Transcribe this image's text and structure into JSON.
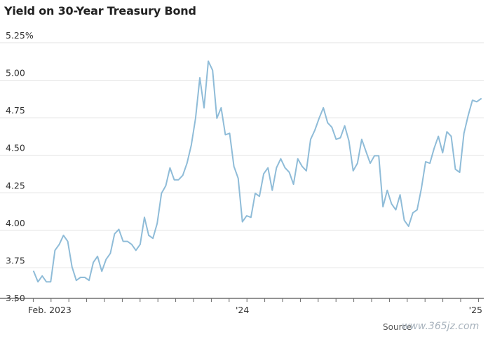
{
  "chart_data": {
    "type": "line",
    "title": "Yield on 30-Year Treasury Bond",
    "xlabel": "",
    "ylabel": "",
    "ylim": [
      3.5,
      5.25
    ],
    "yticks": [
      "5.25%",
      "5.00",
      "4.75",
      "4.50",
      "4.25",
      "4.00",
      "3.75",
      "3.50"
    ],
    "ytick_values": [
      5.25,
      5.0,
      4.75,
      4.5,
      4.25,
      4.0,
      3.75,
      3.5
    ],
    "xtick_labels": [
      {
        "label": "Feb. 2023",
        "index": 0
      },
      {
        "label": "'24",
        "index": 48
      },
      {
        "label": "'25",
        "index": 101
      }
    ],
    "grid": true,
    "line_color": "#8fbcd8",
    "series": [
      {
        "name": "",
        "values": [
          3.68,
          3.61,
          3.65,
          3.61,
          3.61,
          3.82,
          3.86,
          3.92,
          3.88,
          3.71,
          3.62,
          3.64,
          3.64,
          3.62,
          3.74,
          3.78,
          3.68,
          3.76,
          3.8,
          3.93,
          3.96,
          3.88,
          3.88,
          3.86,
          3.82,
          3.86,
          4.04,
          3.92,
          3.9,
          4.0,
          4.2,
          4.25,
          4.37,
          4.29,
          4.29,
          4.32,
          4.4,
          4.52,
          4.7,
          4.97,
          4.77,
          5.08,
          5.02,
          4.7,
          4.77,
          4.59,
          4.6,
          4.38,
          4.3,
          4.01,
          4.05,
          4.04,
          4.2,
          4.18,
          4.33,
          4.37,
          4.22,
          4.37,
          4.43,
          4.37,
          4.34,
          4.26,
          4.43,
          4.38,
          4.35,
          4.56,
          4.62,
          4.7,
          4.77,
          4.67,
          4.64,
          4.56,
          4.57,
          4.65,
          4.55,
          4.35,
          4.4,
          4.56,
          4.48,
          4.4,
          4.45,
          4.45,
          4.11,
          4.22,
          4.13,
          4.09,
          4.19,
          4.02,
          3.98,
          4.07,
          4.09,
          4.23,
          4.41,
          4.4,
          4.5,
          4.58,
          4.47,
          4.61,
          4.58,
          4.36,
          4.34,
          4.6,
          4.72,
          4.82,
          4.81,
          4.83
        ]
      }
    ]
  },
  "footer": {
    "source_label": "Source",
    "watermark": "www.365jz.com"
  }
}
